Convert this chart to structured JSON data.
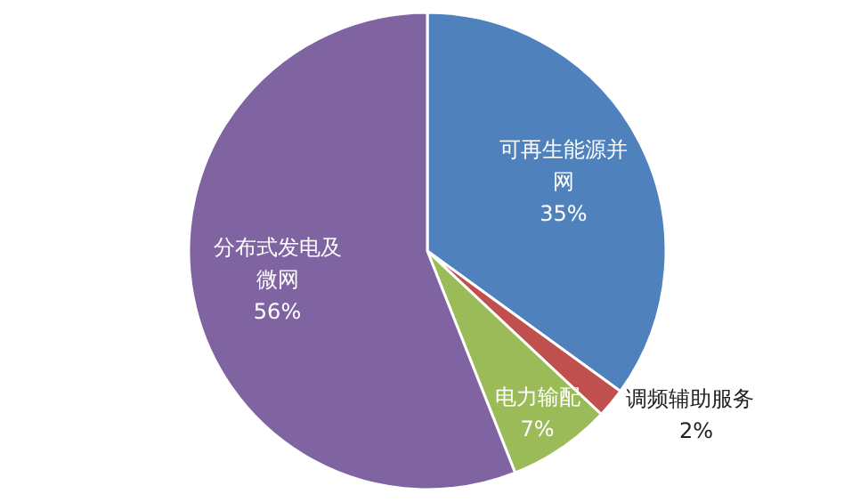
{
  "chart_data": {
    "type": "pie",
    "categories": [
      "可再生能源并网",
      "调频辅助服务",
      "电力输配",
      "分布式发电及微网"
    ],
    "values": [
      35,
      2,
      7,
      56
    ],
    "colors": [
      "#4f81bd",
      "#c0504d",
      "#9bbb59",
      "#8064a2"
    ],
    "value_labels": [
      "35%",
      "2%",
      "7%",
      "56%"
    ]
  }
}
